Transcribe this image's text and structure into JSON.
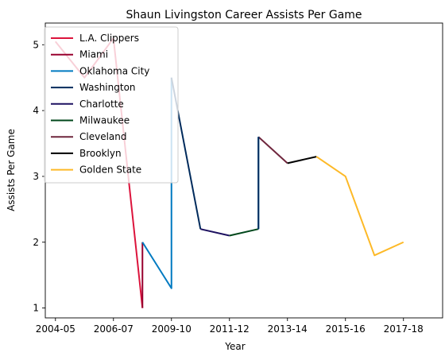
{
  "chart_data": {
    "type": "line",
    "title": "Shaun Livingston Career Assists Per Game",
    "xlabel": "Year",
    "ylabel": "Assists Per Game",
    "xlim": [
      -0.35,
      13.35
    ],
    "ylim": [
      0.85,
      5.33
    ],
    "x_ticks": [
      {
        "x": 0,
        "label": "2004-05"
      },
      {
        "x": 2,
        "label": "2006-07"
      },
      {
        "x": 4,
        "label": "2009-10"
      },
      {
        "x": 6,
        "label": "2011-12"
      },
      {
        "x": 8,
        "label": "2013-14"
      },
      {
        "x": 10,
        "label": "2015-16"
      },
      {
        "x": 12,
        "label": "2017-18"
      }
    ],
    "y_ticks": [
      1,
      2,
      3,
      4,
      5
    ],
    "grid": false,
    "legend_position": "top-left",
    "series": [
      {
        "name": "L.A. Clippers",
        "color": "#dc143c",
        "points": [
          [
            0,
            5.05
          ],
          [
            1,
            4.5
          ],
          [
            2,
            5.1
          ],
          [
            3,
            1.0
          ]
        ]
      },
      {
        "name": "Miami",
        "color": "#98002e",
        "points": [
          [
            3,
            1.0
          ],
          [
            3,
            2.0
          ]
        ]
      },
      {
        "name": "Oklahoma City",
        "color": "#007ac1",
        "points": [
          [
            3,
            2.0
          ],
          [
            4,
            1.3
          ],
          [
            4,
            4.5
          ]
        ]
      },
      {
        "name": "Washington",
        "color": "#002b5c",
        "points": [
          [
            4,
            4.5
          ],
          [
            5,
            2.2
          ]
        ]
      },
      {
        "name": "Charlotte",
        "color": "#1d1160",
        "points": [
          [
            5,
            2.2
          ],
          [
            6,
            2.1
          ]
        ]
      },
      {
        "name": "Milwaukee",
        "color": "#00471b",
        "points": [
          [
            6,
            2.1
          ],
          [
            7,
            2.2
          ]
        ]
      },
      {
        "name": "Cleveland",
        "color": "#6f263d",
        "points": [
          [
            7,
            3.6
          ],
          [
            8,
            3.2
          ]
        ]
      },
      {
        "name": "Brooklyn",
        "color": "#000000",
        "points": [
          [
            8,
            3.2
          ],
          [
            9,
            3.3
          ]
        ]
      },
      {
        "name": "Golden State",
        "color": "#fdb927",
        "points": [
          [
            9,
            3.3
          ],
          [
            10,
            3.0
          ],
          [
            11,
            1.8
          ],
          [
            12,
            2.0
          ]
        ]
      }
    ],
    "connectors": [
      {
        "color": "#007ac1",
        "points": [
          [
            7,
            2.2
          ],
          [
            7,
            3.6
          ]
        ]
      },
      {
        "color": "#002b5c",
        "points": [
          [
            7,
            2.2
          ],
          [
            7,
            3.6
          ]
        ]
      }
    ]
  }
}
